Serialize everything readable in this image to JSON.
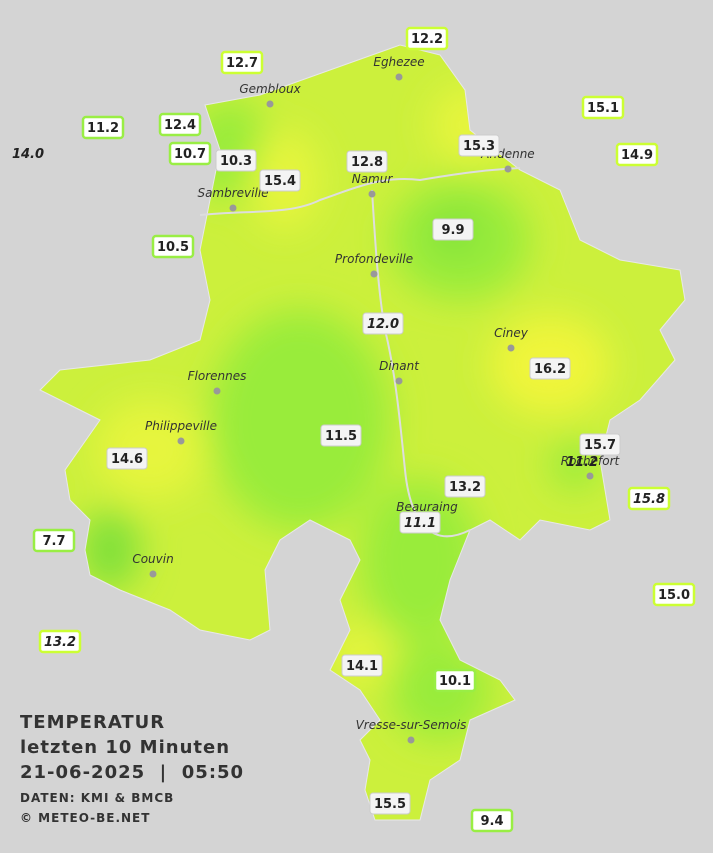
{
  "title": "TEMPERATUR",
  "subtitle": "letzten 10 Minuten",
  "timestamp": "21-06-2025  |  05:50",
  "source": "DATEN: KMI & BMCB",
  "copyright": "© METEO-BE.NET",
  "cities": [
    "Eghezee",
    "Gembloux",
    "Andenne",
    "Sambreville",
    "Namur",
    "Profondeville",
    "Ciney",
    "Dinant",
    "Florennes",
    "Philippeville",
    "Rochefort",
    "Beauraing",
    "Couvin",
    "Vresse-sur-Semois"
  ],
  "stations": [
    "12.2",
    "12.7",
    "15.1",
    "11.2",
    "12.4",
    "14.0",
    "10.7",
    "10.3",
    "15.3",
    "14.9",
    "12.8",
    "15.4",
    "9.9",
    "10.5",
    "12.0",
    "16.2",
    "11.5",
    "15.7",
    "11.2",
    "14.6",
    "15.8",
    "13.2",
    "11.1",
    "7.7",
    "15.0",
    "13.2",
    "14.1",
    "10.1",
    "15.5",
    "9.4"
  ]
}
